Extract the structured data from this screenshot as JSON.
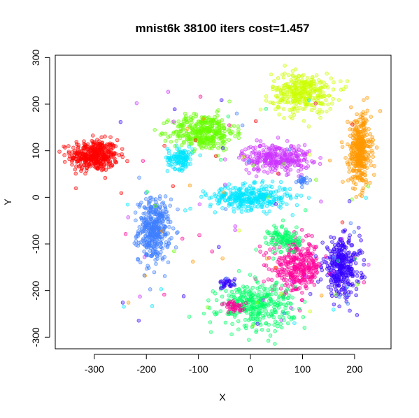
{
  "chart_data": {
    "type": "scatter",
    "title": "mnist6k 38100 iters cost=1.457",
    "xlabel": "X",
    "ylabel": "Y",
    "xlim": [
      -375,
      270
    ],
    "ylim": [
      -325,
      305
    ],
    "xticks": [
      -300,
      -200,
      -100,
      0,
      100,
      200
    ],
    "yticks": [
      -300,
      -200,
      -100,
      0,
      100,
      200,
      300
    ],
    "grid": false,
    "legend": "none",
    "marker": "open-circle",
    "clusters": [
      {
        "color": "#ff0000",
        "center": [
          -300,
          90
        ],
        "spread": [
          38,
          28
        ],
        "points": 400
      },
      {
        "color": "#3f7fff",
        "center": [
          -185,
          -70
        ],
        "spread": [
          25,
          55
        ],
        "points": 380
      },
      {
        "color": "#66ff00",
        "center": [
          -90,
          140
        ],
        "spread": [
          50,
          32
        ],
        "points": 360
      },
      {
        "color": "#00e5ff",
        "center": [
          -135,
          85
        ],
        "spread": [
          20,
          20
        ],
        "points": 120
      },
      {
        "color": "#00e5ff",
        "center": [
          0,
          0
        ],
        "spread": [
          65,
          22
        ],
        "points": 330
      },
      {
        "color": "#cc33ff",
        "center": [
          50,
          85
        ],
        "spread": [
          55,
          25
        ],
        "points": 300
      },
      {
        "color": "#ccff00",
        "center": [
          100,
          225
        ],
        "spread": [
          50,
          35
        ],
        "points": 320
      },
      {
        "color": "#ff9900",
        "center": [
          210,
          100
        ],
        "spread": [
          18,
          65
        ],
        "points": 360
      },
      {
        "color": "#3300ff",
        "center": [
          175,
          -150
        ],
        "spread": [
          30,
          50
        ],
        "points": 330
      },
      {
        "color": "#ff0099",
        "center": [
          90,
          -150
        ],
        "spread": [
          40,
          45
        ],
        "points": 330
      },
      {
        "color": "#00ff66",
        "center": [
          10,
          -230
        ],
        "spread": [
          60,
          40
        ],
        "points": 340
      },
      {
        "color": "#00ff66",
        "center": [
          65,
          -90
        ],
        "spread": [
          25,
          25
        ],
        "points": 110
      },
      {
        "color": "#3f7fff",
        "center": [
          100,
          35
        ],
        "spread": [
          8,
          8
        ],
        "points": 25
      },
      {
        "color": "#3300ff",
        "center": [
          -45,
          -185
        ],
        "spread": [
          12,
          10
        ],
        "points": 30
      },
      {
        "color": "#ff0099",
        "center": [
          -30,
          -235
        ],
        "spread": [
          20,
          10
        ],
        "points": 40
      }
    ],
    "noise_colors": [
      "#ff0000",
      "#3f7fff",
      "#66ff00",
      "#00e5ff",
      "#cc33ff",
      "#ccff00",
      "#ff9900",
      "#3300ff",
      "#ff0099",
      "#00ff66"
    ],
    "noise_points": 120
  }
}
